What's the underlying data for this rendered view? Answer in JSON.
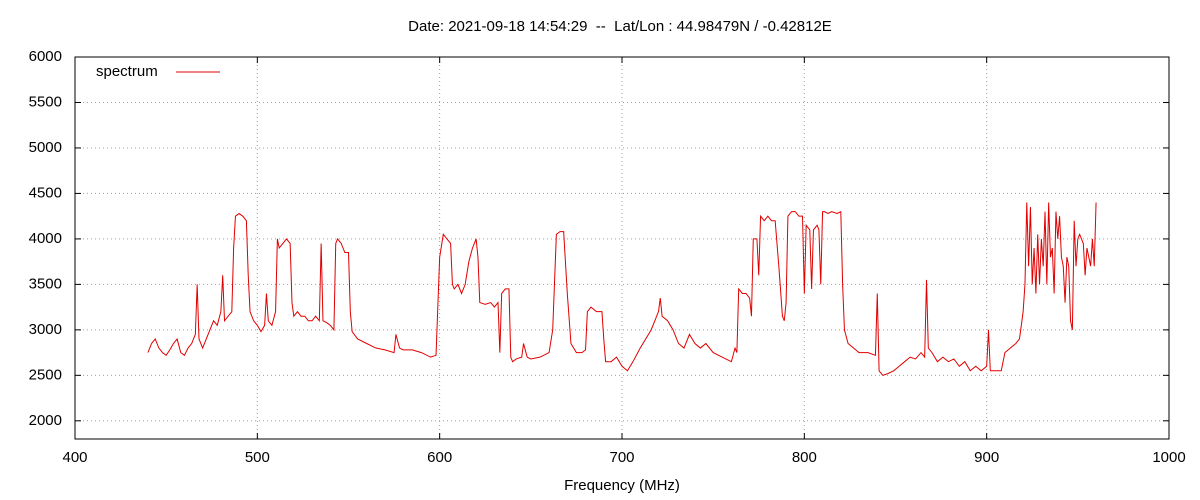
{
  "chart_data": {
    "type": "line",
    "title": "Date: 2021-09-18 14:54:29  --  Lat/Lon : 44.98479N / -0.42812E",
    "x_label": "Frequency (MHz)",
    "xlim": [
      400,
      1000
    ],
    "xticks": [
      400,
      500,
      600,
      700,
      800,
      900,
      1000
    ],
    "ylim": [
      1800,
      6000
    ],
    "yticks": [
      2000,
      2500,
      3000,
      3500,
      4000,
      4500,
      5000,
      5500,
      6000
    ],
    "grid": true,
    "legend": "top-left",
    "series": [
      {
        "name": "spectrum",
        "color": "#e00000",
        "x": [
          440,
          442,
          444,
          446,
          448,
          450,
          452,
          454,
          456,
          458,
          460,
          462,
          464,
          466,
          467,
          468,
          470,
          472,
          474,
          476,
          478,
          480,
          481,
          482,
          484,
          486,
          487,
          488,
          490,
          492,
          494,
          495,
          496,
          498,
          500,
          502,
          504,
          505,
          506,
          508,
          510,
          511,
          512,
          514,
          516,
          518,
          519,
          520,
          522,
          524,
          526,
          528,
          530,
          532,
          534,
          535,
          536,
          538,
          540,
          542,
          543,
          544,
          546,
          548,
          550,
          551,
          552,
          555,
          560,
          565,
          570,
          575,
          576,
          578,
          580,
          585,
          590,
          595,
          598,
          600,
          602,
          604,
          606,
          607,
          608,
          610,
          612,
          614,
          616,
          618,
          620,
          621,
          622,
          625,
          628,
          630,
          632,
          633,
          634,
          636,
          638,
          639,
          640,
          642,
          645,
          646,
          648,
          650,
          655,
          660,
          662,
          664,
          666,
          668,
          670,
          672,
          675,
          678,
          680,
          681,
          683,
          686,
          689,
          690,
          691,
          694,
          697,
          700,
          703,
          706,
          710,
          713,
          716,
          718,
          720,
          721,
          722,
          725,
          728,
          731,
          734,
          737,
          740,
          743,
          746,
          750,
          755,
          760,
          762,
          763,
          764,
          766,
          768,
          770,
          771,
          772,
          774,
          775,
          776,
          778,
          780,
          782,
          784,
          786,
          788,
          789,
          790,
          791,
          793,
          795,
          797,
          799,
          800,
          801,
          803,
          804,
          805,
          807,
          808,
          809,
          810,
          811,
          813,
          815,
          818,
          820,
          821,
          822,
          824,
          827,
          830,
          835,
          839,
          840,
          841,
          843,
          846,
          849,
          852,
          855,
          858,
          861,
          864,
          866,
          867,
          868,
          870,
          873,
          876,
          879,
          882,
          885,
          888,
          891,
          894,
          897,
          900,
          901,
          902,
          905,
          908,
          910,
          913,
          916,
          918,
          920,
          921,
          922,
          923,
          924,
          925,
          926,
          927,
          928,
          929,
          930,
          931,
          932,
          933,
          934,
          935,
          936,
          937,
          938,
          939,
          940,
          941,
          942,
          943,
          944,
          945,
          946,
          947,
          948,
          949,
          950,
          951,
          952,
          953,
          954,
          955,
          956,
          957,
          958,
          959,
          960
        ],
        "values": [
          2750,
          2850,
          2900,
          2800,
          2750,
          2720,
          2780,
          2850,
          2900,
          2750,
          2720,
          2800,
          2850,
          2950,
          3500,
          2900,
          2800,
          2900,
          3000,
          3100,
          3050,
          3200,
          3600,
          3100,
          3150,
          3200,
          3900,
          4250,
          4280,
          4250,
          4200,
          3600,
          3200,
          3100,
          3050,
          2980,
          3050,
          3400,
          3100,
          3050,
          3200,
          4000,
          3900,
          3950,
          4000,
          3950,
          3300,
          3150,
          3200,
          3150,
          3150,
          3100,
          3100,
          3150,
          3100,
          3950,
          3100,
          3080,
          3050,
          3000,
          3950,
          4000,
          3950,
          3850,
          3850,
          3200,
          2980,
          2900,
          2850,
          2800,
          2780,
          2750,
          2950,
          2800,
          2780,
          2780,
          2750,
          2700,
          2720,
          3800,
          4050,
          4000,
          3950,
          3500,
          3450,
          3500,
          3400,
          3500,
          3750,
          3900,
          4000,
          3800,
          3300,
          3280,
          3300,
          3250,
          3300,
          2750,
          3400,
          3450,
          3450,
          2700,
          2650,
          2680,
          2700,
          2850,
          2700,
          2680,
          2700,
          2750,
          3000,
          4050,
          4080,
          4080,
          3400,
          2850,
          2750,
          2750,
          2780,
          3200,
          3250,
          3200,
          3200,
          2900,
          2650,
          2650,
          2700,
          2600,
          2550,
          2650,
          2800,
          2900,
          3000,
          3100,
          3200,
          3350,
          3150,
          3100,
          3000,
          2850,
          2800,
          2950,
          2850,
          2800,
          2850,
          2750,
          2700,
          2650,
          2800,
          2750,
          3450,
          3400,
          3400,
          3350,
          3150,
          4000,
          4000,
          3600,
          4250,
          4200,
          4250,
          4200,
          4200,
          3700,
          3150,
          3100,
          3300,
          4250,
          4300,
          4300,
          4250,
          4250,
          3400,
          4150,
          4100,
          3450,
          4100,
          4150,
          4100,
          3500,
          4300,
          4300,
          4280,
          4300,
          4280,
          4300,
          3500,
          3000,
          2850,
          2800,
          2750,
          2750,
          2720,
          3400,
          2550,
          2500,
          2520,
          2550,
          2600,
          2650,
          2700,
          2680,
          2750,
          2700,
          3550,
          2800,
          2750,
          2650,
          2700,
          2650,
          2680,
          2600,
          2650,
          2550,
          2600,
          2550,
          2600,
          3000,
          2550,
          2550,
          2550,
          2750,
          2800,
          2850,
          2900,
          3200,
          3500,
          4400,
          3700,
          4350,
          3500,
          3900,
          3400,
          4050,
          3500,
          4000,
          3700,
          4300,
          3500,
          4400,
          3800,
          3900,
          3400,
          4300,
          4000,
          4250,
          3800,
          3700,
          3300,
          3800,
          3700,
          3100,
          3000,
          4200,
          3700,
          4000,
          4050,
          4000,
          3950,
          3600,
          3900,
          3800,
          3700,
          4000,
          3700,
          4400
        ]
      }
    ]
  }
}
